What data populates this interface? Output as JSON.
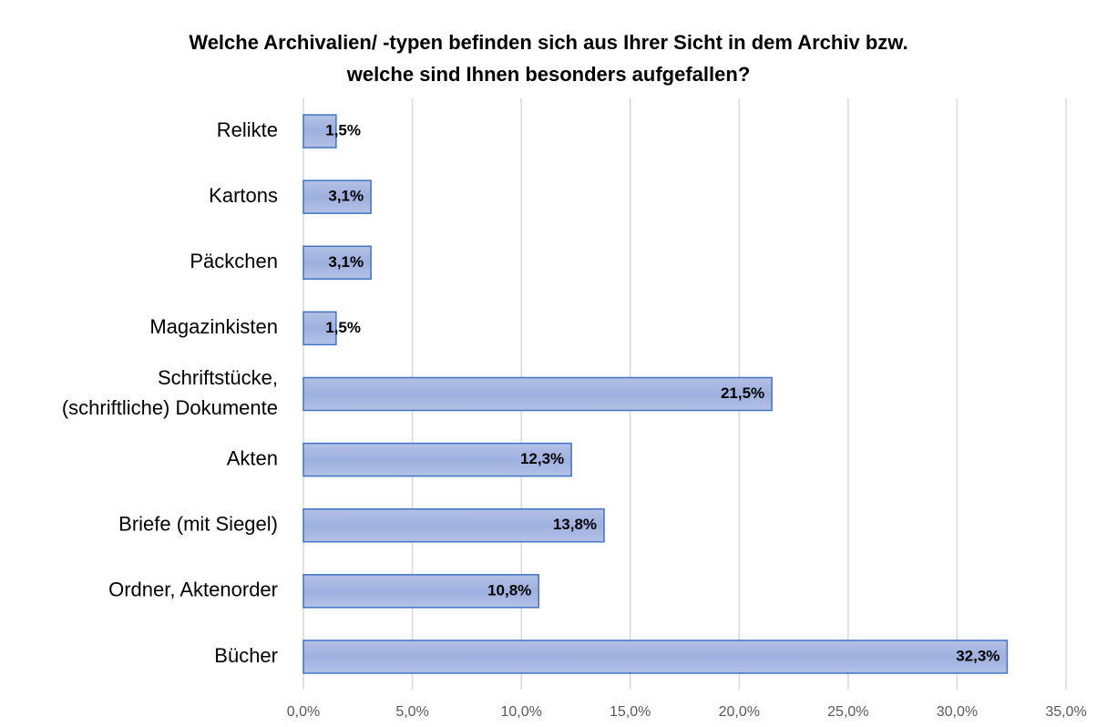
{
  "chart_data": {
    "type": "barh",
    "title": "Welche Archivalien/ -typen befinden sich aus Ihrer Sicht in dem Archiv bzw.\nwelche sind Ihnen besonders aufgefallen?",
    "categories": [
      "Relikte",
      "Kartons",
      "Päckchen",
      "Magazinkisten",
      "Schriftstücke,\n(schriftliche) Dokumente",
      "Akten",
      "Briefe (mit Siegel)",
      "Ordner, Aktenorder",
      "Bücher"
    ],
    "values": [
      1.5,
      3.1,
      3.1,
      1.5,
      21.5,
      12.3,
      13.8,
      10.8,
      32.3
    ],
    "value_labels": [
      "1,5%",
      "3,1%",
      "3,1%",
      "1,5%",
      "21,5%",
      "12,3%",
      "13,8%",
      "10,8%",
      "32,3%"
    ],
    "color": "#4472c4",
    "xlim": [
      0,
      35
    ],
    "xticks": [
      {
        "value": 0,
        "label": "0,0%"
      },
      {
        "value": 5,
        "label": "5,0%"
      },
      {
        "value": 10,
        "label": "10,0%"
      },
      {
        "value": 15,
        "label": "15,0%"
      },
      {
        "value": 20,
        "label": "20,0%"
      },
      {
        "value": 25,
        "label": "25,0%"
      },
      {
        "value": 30,
        "label": "30,0%"
      },
      {
        "value": 35,
        "label": "35,0%"
      }
    ],
    "grid": true
  }
}
